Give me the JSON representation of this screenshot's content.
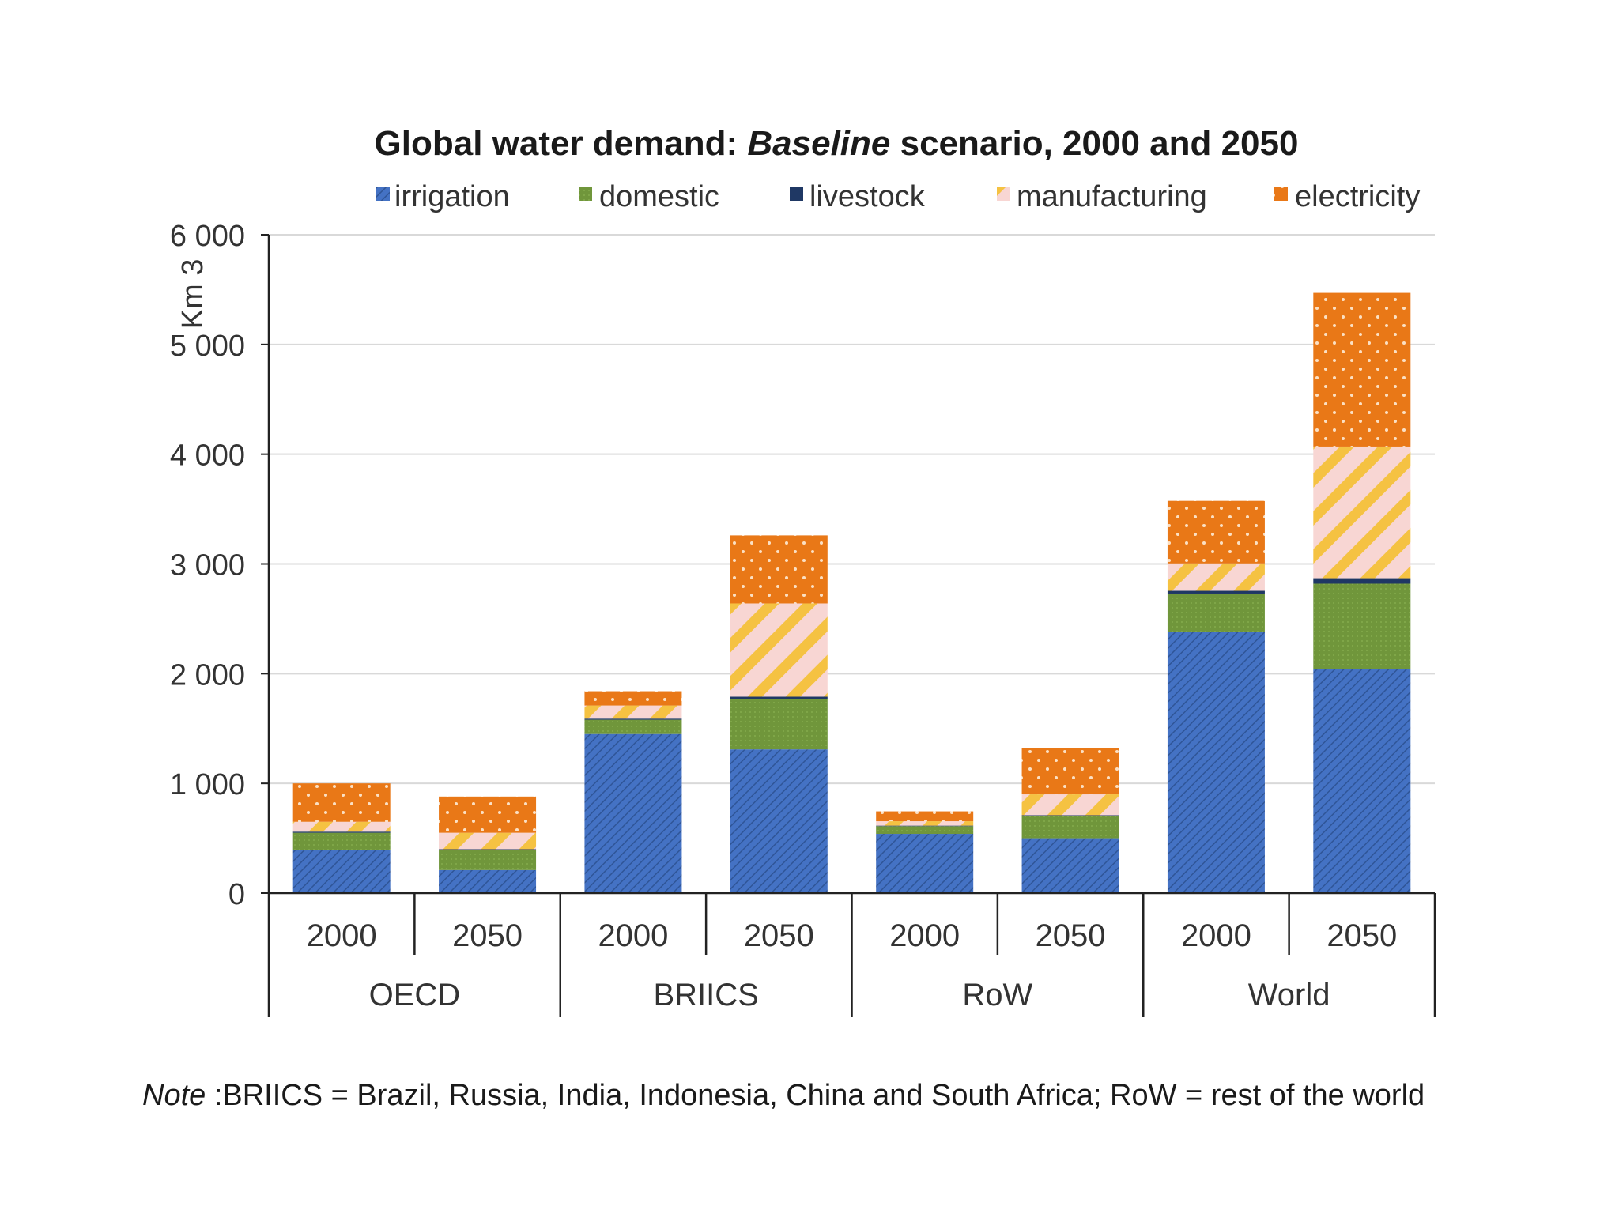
{
  "chart_data": {
    "type": "bar",
    "stacked": true,
    "title_parts": [
      "Global water demand: ",
      "Baseline",
      " scenario, 2000 and 2050"
    ],
    "ylabel": "Km 3",
    "ylim": [
      0,
      6000
    ],
    "yticks": [
      0,
      1000,
      2000,
      3000,
      4000,
      5000,
      6000
    ],
    "ytick_labels": [
      "0",
      "1 000",
      "2 000",
      "3 000",
      "4 000",
      "5 000",
      "6 000"
    ],
    "groups": [
      "OECD",
      "BRIICS",
      "RoW",
      "World"
    ],
    "categories": [
      "2000",
      "2050",
      "2000",
      "2050",
      "2000",
      "2050",
      "2000",
      "2050"
    ],
    "legend_position": "top",
    "grid": true,
    "series": [
      {
        "name": "irrigation",
        "color": "#4472C4",
        "values": [
          390,
          210,
          1450,
          1310,
          540,
          500,
          2380,
          2040
        ]
      },
      {
        "name": "domestic",
        "color": "#70963B",
        "values": [
          160,
          180,
          130,
          460,
          70,
          200,
          350,
          780
        ]
      },
      {
        "name": "livestock",
        "color": "#1F3864",
        "values": [
          10,
          10,
          10,
          20,
          5,
          10,
          25,
          50
        ]
      },
      {
        "name": "manufacturing",
        "color": "#F5C242",
        "values": [
          90,
          150,
          120,
          850,
          40,
          190,
          250,
          1200
        ]
      },
      {
        "name": "electricity",
        "color": "#E97817",
        "values": [
          350,
          330,
          130,
          620,
          90,
          420,
          570,
          1400
        ]
      }
    ]
  },
  "note": {
    "prefix": "Note",
    "text": " :BRIICS = Brazil, Russia, India, Indonesia, China and South Africa; RoW = rest of the world"
  }
}
